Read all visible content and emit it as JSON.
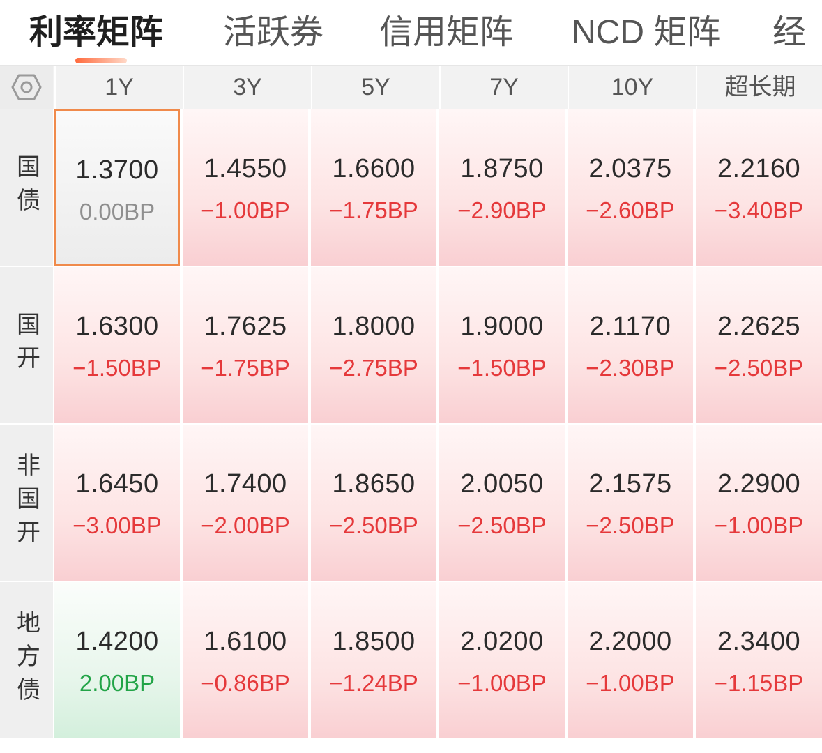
{
  "tabs": [
    {
      "label": "利率矩阵",
      "active": true
    },
    {
      "label": "活跃券",
      "active": false
    },
    {
      "label": "信用矩阵",
      "active": false
    },
    {
      "label": "NCD 矩阵",
      "active": false
    },
    {
      "label": "经",
      "active": false
    }
  ],
  "settings_icon": "hexagon-settings-icon",
  "columns": [
    "1Y",
    "3Y",
    "5Y",
    "7Y",
    "10Y",
    "超长期"
  ],
  "rows": [
    {
      "label": "国债",
      "cells": [
        {
          "rate": "1.3700",
          "change": "0.00BP",
          "dir": "zero"
        },
        {
          "rate": "1.4550",
          "change": "−1.00BP",
          "dir": "down"
        },
        {
          "rate": "1.6600",
          "change": "−1.75BP",
          "dir": "down"
        },
        {
          "rate": "1.8750",
          "change": "−2.90BP",
          "dir": "down"
        },
        {
          "rate": "2.0375",
          "change": "−2.60BP",
          "dir": "down"
        },
        {
          "rate": "2.2160",
          "change": "−3.40BP",
          "dir": "down"
        }
      ]
    },
    {
      "label": "国开",
      "cells": [
        {
          "rate": "1.6300",
          "change": "−1.50BP",
          "dir": "down"
        },
        {
          "rate": "1.7625",
          "change": "−1.75BP",
          "dir": "down"
        },
        {
          "rate": "1.8000",
          "change": "−2.75BP",
          "dir": "down"
        },
        {
          "rate": "1.9000",
          "change": "−1.50BP",
          "dir": "down"
        },
        {
          "rate": "2.1170",
          "change": "−2.30BP",
          "dir": "down"
        },
        {
          "rate": "2.2625",
          "change": "−2.50BP",
          "dir": "down"
        }
      ]
    },
    {
      "label": "非国开",
      "cells": [
        {
          "rate": "1.6450",
          "change": "−3.00BP",
          "dir": "down"
        },
        {
          "rate": "1.7400",
          "change": "−2.00BP",
          "dir": "down"
        },
        {
          "rate": "1.8650",
          "change": "−2.50BP",
          "dir": "down"
        },
        {
          "rate": "2.0050",
          "change": "−2.50BP",
          "dir": "down"
        },
        {
          "rate": "2.1575",
          "change": "−2.50BP",
          "dir": "down"
        },
        {
          "rate": "2.2900",
          "change": "−1.00BP",
          "dir": "down"
        }
      ]
    },
    {
      "label": "地方债",
      "cells": [
        {
          "rate": "1.4200",
          "change": "2.00BP",
          "dir": "up"
        },
        {
          "rate": "1.6100",
          "change": "−0.86BP",
          "dir": "down"
        },
        {
          "rate": "1.8500",
          "change": "−1.24BP",
          "dir": "down"
        },
        {
          "rate": "2.0200",
          "change": "−1.00BP",
          "dir": "down"
        },
        {
          "rate": "2.2000",
          "change": "−1.00BP",
          "dir": "down"
        },
        {
          "rate": "2.3400",
          "change": "−1.15BP",
          "dir": "down"
        }
      ]
    }
  ],
  "colors": {
    "down": "#e5393b",
    "up": "#22a447",
    "zero": "#8f8f8f",
    "selected_border": "#f08a4b",
    "tab_indicator": "#ff6a3d"
  }
}
